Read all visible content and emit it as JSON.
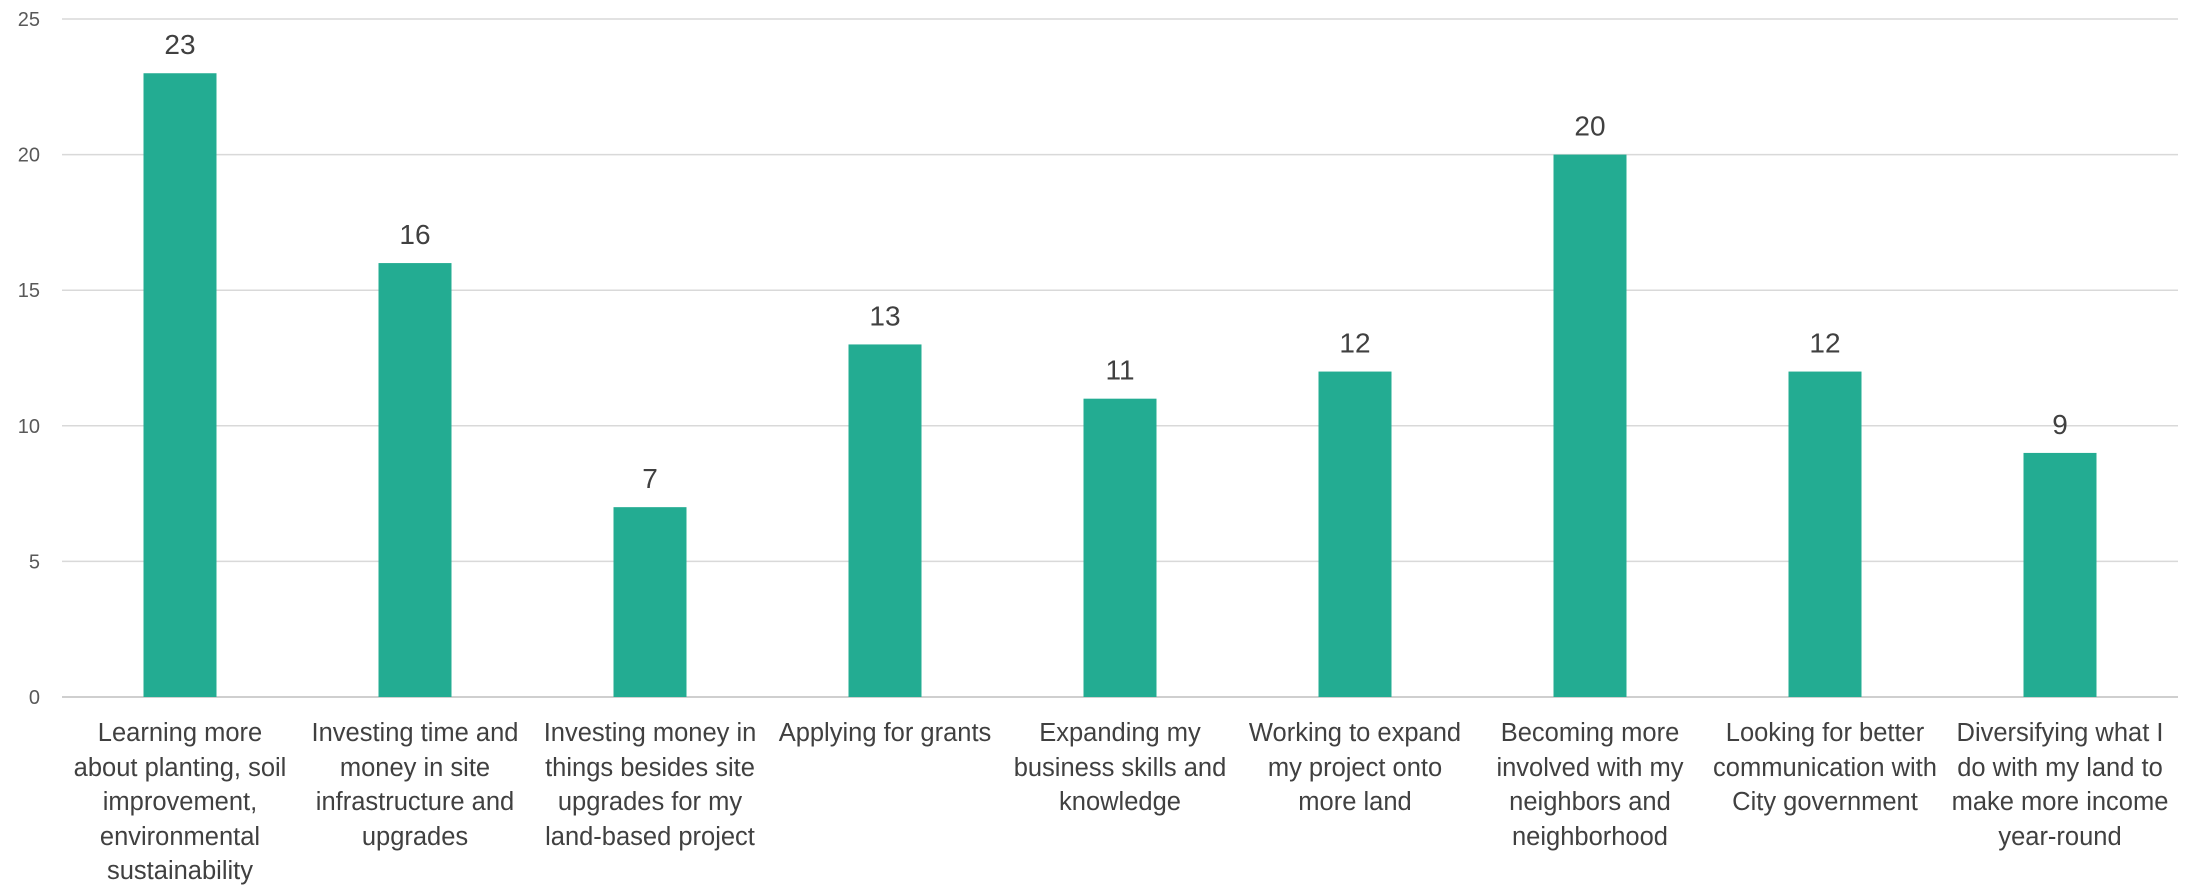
{
  "chart_data": {
    "type": "bar",
    "title": "",
    "xlabel": "",
    "ylabel": "",
    "ylim": [
      0,
      25
    ],
    "yticks": [
      0,
      5,
      10,
      15,
      20,
      25
    ],
    "grid": true,
    "legend": "none",
    "bar_color": "#23ac92",
    "show_data_labels": true,
    "categories": [
      "Learning more about planting, soil improvement, environmental sustainability",
      "Investing time and money in site infrastructure and upgrades",
      "Investing money in things besides site upgrades for my land-based project",
      "Applying for grants",
      "Expanding my business skills and knowledge",
      "Working to expand my project onto more land",
      "Becoming more involved with my neighbors and neighborhood",
      "Looking for better communication with City government",
      "Diversifying what I do with my land to make more income year-round"
    ],
    "values": [
      23,
      16,
      7,
      13,
      11,
      12,
      20,
      12,
      9
    ]
  }
}
